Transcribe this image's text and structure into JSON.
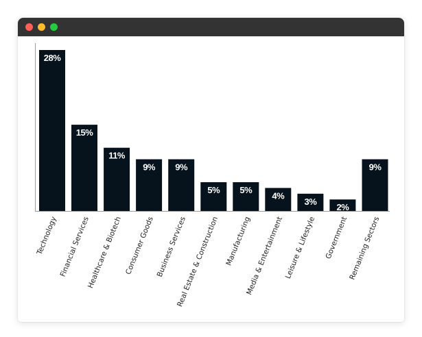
{
  "window": {
    "controls": [
      "close",
      "minimize",
      "maximize"
    ],
    "colors": {
      "titlebar": "#333333",
      "close": "#ff5f57",
      "minimize": "#febc2e",
      "maximize": "#28c840"
    }
  },
  "chart_data": {
    "type": "bar",
    "title": "",
    "xlabel": "",
    "ylabel": "",
    "categories": [
      "Technology",
      "Financial Services",
      "Healthcare & Biotech",
      "Consumer Goods",
      "Business Services",
      "Real Estate & Construction",
      "Manufacturing",
      "Media & Entertainment",
      "Leisure & Lifestyle",
      "Government",
      "Remaining Sectors"
    ],
    "values": [
      28,
      15,
      11,
      9,
      9,
      5,
      5,
      4,
      3,
      2,
      9
    ],
    "value_labels": [
      "28%",
      "15%",
      "11%",
      "9%",
      "9%",
      "5%",
      "5%",
      "4%",
      "3%",
      "2%",
      "9%"
    ],
    "unit": "%",
    "ylim": [
      0,
      28
    ],
    "grid": false,
    "legend": "none",
    "bar_color": "#07131c",
    "label_color": "#ffffff"
  }
}
